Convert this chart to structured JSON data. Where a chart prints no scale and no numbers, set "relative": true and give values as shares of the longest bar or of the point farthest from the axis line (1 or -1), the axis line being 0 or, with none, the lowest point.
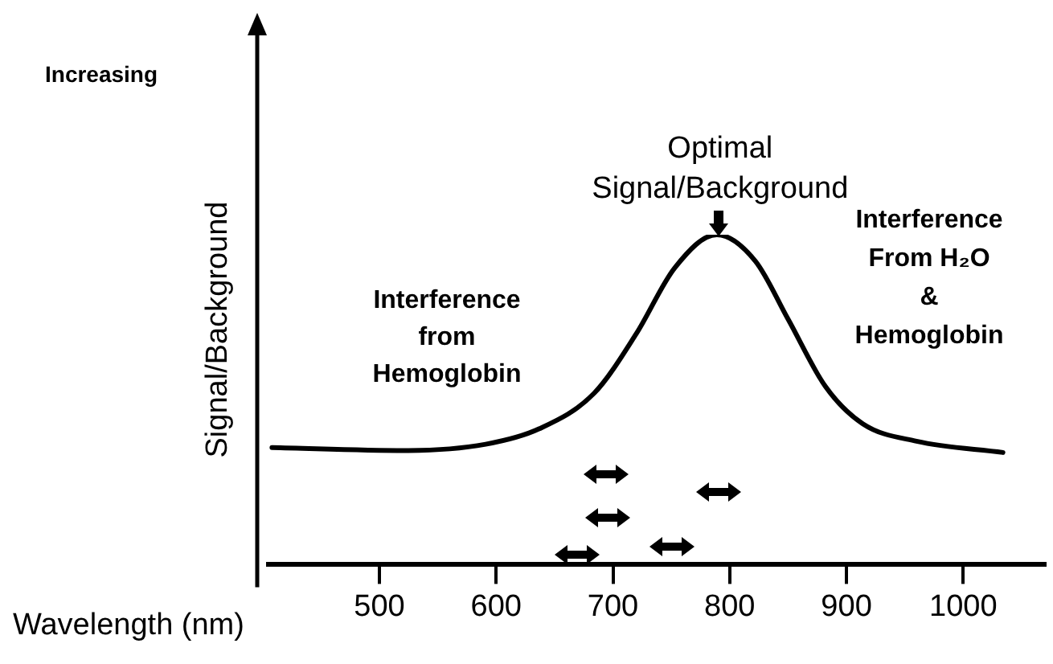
{
  "chart_data": {
    "type": "line",
    "relative": true,
    "xlabel": "Wavelength (nm)",
    "ylabel": "Signal/Background",
    "xlim": [
      405,
      1070
    ],
    "xticks": [
      500,
      600,
      700,
      800,
      900,
      1000
    ],
    "x": [
      408,
      522,
      591,
      637,
      684,
      720,
      753,
      789,
      822,
      850,
      882,
      914,
      960,
      1034
    ],
    "series": [
      {
        "color": "#000000",
        "values": [
          0.355,
          0.346,
          0.365,
          0.412,
          0.52,
          0.7,
          0.9,
          1,
          0.92,
          0.744,
          0.54,
          0.427,
          0.374,
          0.34
        ]
      }
    ],
    "marker": "none",
    "line_style": "solid",
    "grid": false,
    "legend": false,
    "annotations": [
      "Increasing",
      {
        "text": "Optimal\nSignal/Background",
        "x": 789,
        "y": 1
      },
      "Interference\nfrom\nHemoglobin",
      "Interference\nFrom H₂O\n&\nHemoglobin"
    ]
  }
}
